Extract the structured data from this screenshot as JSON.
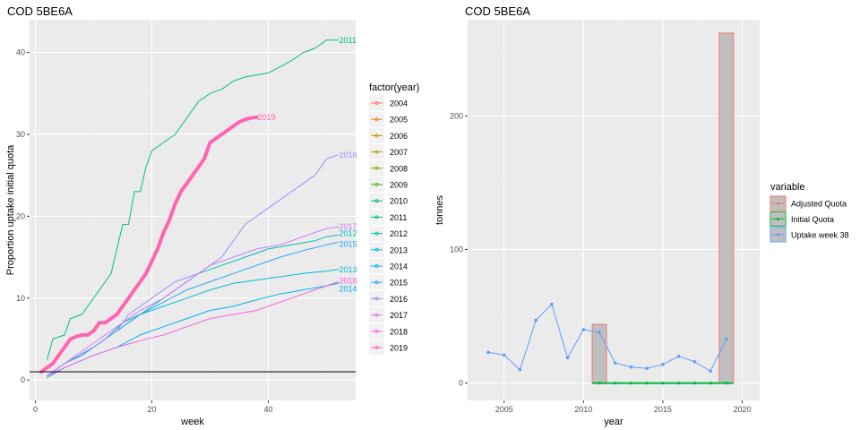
{
  "chart_data": [
    {
      "type": "line",
      "title": "COD 5BE6A",
      "xlabel": "week",
      "ylabel": "Proportion uptake initial quota",
      "xlim": [
        -1,
        55
      ],
      "ylim": [
        -2.5,
        44
      ],
      "xticks": [
        0,
        20,
        40
      ],
      "yticks": [
        0,
        10,
        20,
        30,
        40
      ],
      "hline": 1,
      "legend_title": "factor(year)",
      "legend_placement": "right",
      "grid": true,
      "series": [
        {
          "name": "2004",
          "color": "#F8766D",
          "values": []
        },
        {
          "name": "2005",
          "color": "#E7851E",
          "values": []
        },
        {
          "name": "2006",
          "color": "#D09400",
          "values": []
        },
        {
          "name": "2007",
          "color": "#B2A100",
          "values": []
        },
        {
          "name": "2008",
          "color": "#89AC00",
          "values": []
        },
        {
          "name": "2009",
          "color": "#45B500",
          "values": []
        },
        {
          "name": "2010",
          "color": "#00BC51",
          "values": []
        },
        {
          "name": "2011",
          "color": "#00C087",
          "end_label": "2011",
          "values": [
            [
              2,
              2.5
            ],
            [
              3,
              5
            ],
            [
              5,
              5.5
            ],
            [
              6,
              7.5
            ],
            [
              8,
              8
            ],
            [
              10,
              10
            ],
            [
              12,
              12
            ],
            [
              13,
              13
            ],
            [
              14,
              16
            ],
            [
              15,
              19
            ],
            [
              16,
              19
            ],
            [
              17,
              23
            ],
            [
              18,
              23
            ],
            [
              19,
              26
            ],
            [
              20,
              28
            ],
            [
              22,
              29
            ],
            [
              24,
              30
            ],
            [
              26,
              32
            ],
            [
              28,
              34
            ],
            [
              30,
              35
            ],
            [
              32,
              35.5
            ],
            [
              34,
              36.5
            ],
            [
              36,
              37
            ],
            [
              40,
              37.5
            ],
            [
              44,
              39
            ],
            [
              46,
              40
            ],
            [
              48,
              40.5
            ],
            [
              50,
              41.5
            ],
            [
              51,
              41.5
            ],
            [
              52,
              41.5
            ]
          ]
        },
        {
          "name": "2012",
          "color": "#00C0B2",
          "end_label": "2012",
          "values": [
            [
              2,
              0.5
            ],
            [
              5,
              2
            ],
            [
              8,
              3
            ],
            [
              10,
              4
            ],
            [
              12,
              5
            ],
            [
              15,
              7
            ],
            [
              18,
              8
            ],
            [
              20,
              9
            ],
            [
              24,
              11
            ],
            [
              28,
              13
            ],
            [
              32,
              14
            ],
            [
              36,
              15
            ],
            [
              40,
              16
            ],
            [
              44,
              16.5
            ],
            [
              48,
              17
            ],
            [
              50,
              17.5
            ],
            [
              52,
              17.7
            ]
          ]
        },
        {
          "name": "2013",
          "color": "#00BCD6",
          "end_label": "2013",
          "values": [
            [
              2,
              0.5
            ],
            [
              5,
              2
            ],
            [
              10,
              4
            ],
            [
              14,
              6
            ],
            [
              18,
              8
            ],
            [
              22,
              9
            ],
            [
              26,
              10
            ],
            [
              30,
              11
            ],
            [
              34,
              11.8
            ],
            [
              38,
              12.2
            ],
            [
              42,
              12.6
            ],
            [
              46,
              13
            ],
            [
              50,
              13.3
            ],
            [
              52,
              13.5
            ]
          ]
        },
        {
          "name": "2014",
          "color": "#00B3F2",
          "end_label": "2014",
          "values": [
            [
              2,
              0.3
            ],
            [
              5,
              1.5
            ],
            [
              10,
              3
            ],
            [
              14,
              4
            ],
            [
              18,
              5.5
            ],
            [
              22,
              6.5
            ],
            [
              26,
              7.5
            ],
            [
              30,
              8.5
            ],
            [
              34,
              9
            ],
            [
              38,
              9.8
            ],
            [
              42,
              10.5
            ],
            [
              46,
              11
            ],
            [
              50,
              11.5
            ],
            [
              52,
              11.8
            ]
          ]
        },
        {
          "name": "2015",
          "color": "#29A3FF",
          "end_label": "2015",
          "values": [
            [
              2,
              0.5
            ],
            [
              5,
              2
            ],
            [
              10,
              4
            ],
            [
              14,
              6
            ],
            [
              18,
              8
            ],
            [
              22,
              9.5
            ],
            [
              26,
              11
            ],
            [
              30,
              12
            ],
            [
              34,
              13
            ],
            [
              38,
              14
            ],
            [
              42,
              15
            ],
            [
              46,
              15.8
            ],
            [
              50,
              16.5
            ],
            [
              52,
              16.8
            ]
          ]
        },
        {
          "name": "2016",
          "color": "#9C8DFF",
          "end_label": "2016",
          "values": [
            [
              2,
              0.5
            ],
            [
              5,
              2
            ],
            [
              10,
              4
            ],
            [
              14,
              6
            ],
            [
              16,
              8
            ],
            [
              20,
              10
            ],
            [
              24,
              12
            ],
            [
              28,
              13
            ],
            [
              32,
              15
            ],
            [
              36,
              19
            ],
            [
              40,
              21
            ],
            [
              44,
              23
            ],
            [
              46,
              24
            ],
            [
              48,
              25
            ],
            [
              50,
              27
            ],
            [
              52,
              27.5
            ]
          ]
        },
        {
          "name": "2017",
          "color": "#D277FF",
          "end_label": "2017",
          "values": [
            [
              2,
              0.5
            ],
            [
              5,
              2
            ],
            [
              10,
              4.5
            ],
            [
              14,
              6.5
            ],
            [
              18,
              8.5
            ],
            [
              22,
              10
            ],
            [
              26,
              12
            ],
            [
              30,
              14
            ],
            [
              34,
              15
            ],
            [
              38,
              16
            ],
            [
              42,
              16.5
            ],
            [
              46,
              17.5
            ],
            [
              50,
              18.5
            ],
            [
              52,
              18.7
            ]
          ]
        },
        {
          "name": "2018",
          "color": "#F563E3",
          "end_label": "2018",
          "values": [
            [
              2,
              0.5
            ],
            [
              5,
              1.5
            ],
            [
              10,
              3
            ],
            [
              14,
              4
            ],
            [
              18,
              4.8
            ],
            [
              22,
              5.5
            ],
            [
              26,
              6.5
            ],
            [
              30,
              7.5
            ],
            [
              34,
              8
            ],
            [
              38,
              8.5
            ],
            [
              42,
              9.5
            ],
            [
              46,
              10.5
            ],
            [
              50,
              11.5
            ],
            [
              52,
              12
            ]
          ]
        },
        {
          "name": "2019",
          "color": "#FF64B0",
          "end_label": "2019",
          "highlight": true,
          "values": [
            [
              1,
              1
            ],
            [
              2,
              1.5
            ],
            [
              3,
              2
            ],
            [
              4,
              3
            ],
            [
              5,
              4
            ],
            [
              6,
              5
            ],
            [
              7,
              5.3
            ],
            [
              8,
              5.5
            ],
            [
              9,
              5.5
            ],
            [
              10,
              6
            ],
            [
              11,
              7
            ],
            [
              12,
              7
            ],
            [
              13,
              7.5
            ],
            [
              14,
              8
            ],
            [
              15,
              9
            ],
            [
              16,
              10
            ],
            [
              17,
              11
            ],
            [
              18,
              12
            ],
            [
              19,
              13
            ],
            [
              20,
              14.5
            ],
            [
              21,
              16
            ],
            [
              22,
              18
            ],
            [
              23,
              19.5
            ],
            [
              24,
              21.5
            ],
            [
              25,
              23
            ],
            [
              26,
              24
            ],
            [
              27,
              25
            ],
            [
              28,
              26
            ],
            [
              29,
              27
            ],
            [
              30,
              29
            ],
            [
              31,
              29.5
            ],
            [
              32,
              30
            ],
            [
              33,
              30.5
            ],
            [
              34,
              31
            ],
            [
              35,
              31.5
            ],
            [
              36,
              31.8
            ],
            [
              37,
              32
            ],
            [
              38,
              32.1
            ]
          ]
        }
      ]
    },
    {
      "type": "bar",
      "title": "COD 5BE6A",
      "xlabel": "year",
      "ylabel": "tonnes",
      "xlim": [
        2002.7,
        2021.1
      ],
      "ylim": [
        -13,
        272
      ],
      "xticks": [
        2005,
        2010,
        2015,
        2020
      ],
      "yticks": [
        0,
        100,
        200
      ],
      "legend_title": "variable",
      "legend_placement": "right",
      "grid": true,
      "adjusted_quota_bars": [
        {
          "year": 2011,
          "value": 44
        },
        {
          "year": 2019,
          "value": 262
        }
      ],
      "initial_quota": {
        "x": [
          2011,
          2019
        ],
        "value": 0
      },
      "uptake_week_38": {
        "years": [
          2004,
          2005,
          2006,
          2007,
          2008,
          2009,
          2010,
          2011,
          2012,
          2013,
          2014,
          2015,
          2016,
          2017,
          2018,
          2019
        ],
        "values": [
          23,
          21,
          10,
          47,
          59,
          19,
          40,
          38,
          15,
          12,
          11,
          14,
          20,
          16,
          9,
          33
        ]
      },
      "legend": [
        {
          "label": "Adjusted Quota",
          "color": "#F8766D",
          "fill": "#BFBFBF"
        },
        {
          "label": "Initial Quota",
          "color": "#00BA38",
          "fill": "#BFBFBF"
        },
        {
          "label": "Uptake week 38",
          "color": "#619CFF",
          "fill": "#BFBFBF"
        }
      ]
    }
  ]
}
